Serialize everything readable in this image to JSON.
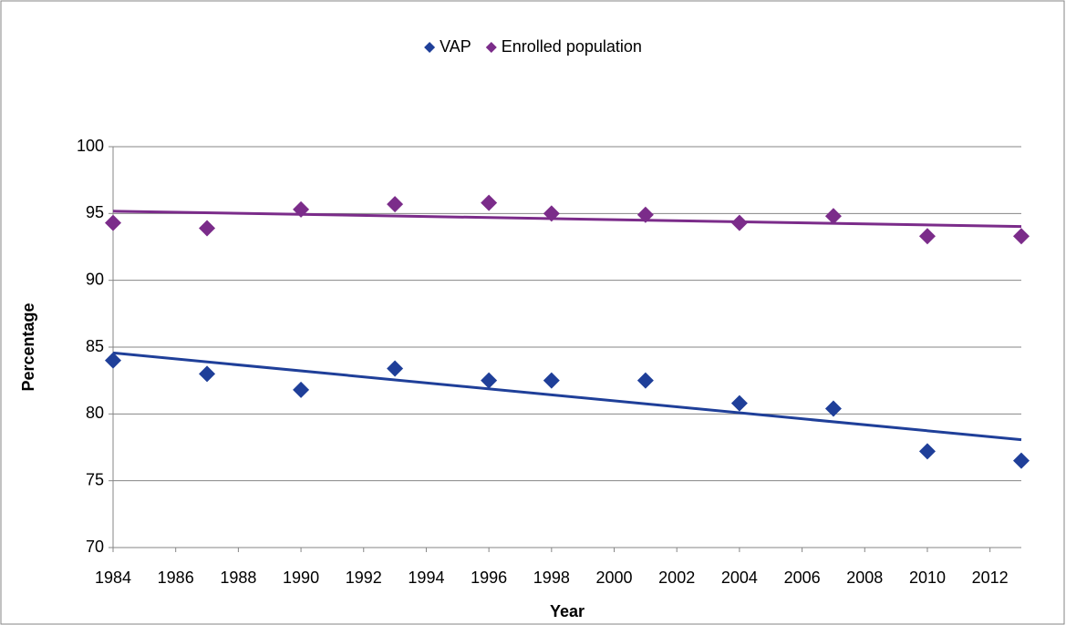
{
  "chart_data": {
    "type": "scatter",
    "x": [
      1984,
      1987,
      1990,
      1993,
      1996,
      1998,
      2001,
      2004,
      2007,
      2010,
      2013
    ],
    "series": [
      {
        "name": "VAP",
        "color": "#1f3f99",
        "values": [
          84.0,
          83.0,
          81.8,
          83.4,
          82.5,
          82.5,
          82.5,
          80.8,
          80.4,
          77.2,
          76.5
        ]
      },
      {
        "name": "Enrolled population",
        "color": "#7b2c8a",
        "values": [
          94.3,
          93.9,
          95.3,
          95.7,
          95.8,
          95.0,
          94.9,
          94.3,
          94.8,
          93.3,
          93.3
        ]
      }
    ],
    "trendline": "linear",
    "xlabel": "Year",
    "ylabel": "Percentage",
    "xlim": [
      1984,
      2013
    ],
    "xticks": [
      1984,
      1986,
      1988,
      1990,
      1992,
      1994,
      1996,
      1998,
      2000,
      2002,
      2004,
      2006,
      2008,
      2010,
      2012
    ],
    "ylim": [
      70,
      100
    ],
    "yticks": [
      70,
      75,
      80,
      85,
      90,
      95,
      100
    ],
    "grid": true,
    "legend": "top"
  }
}
